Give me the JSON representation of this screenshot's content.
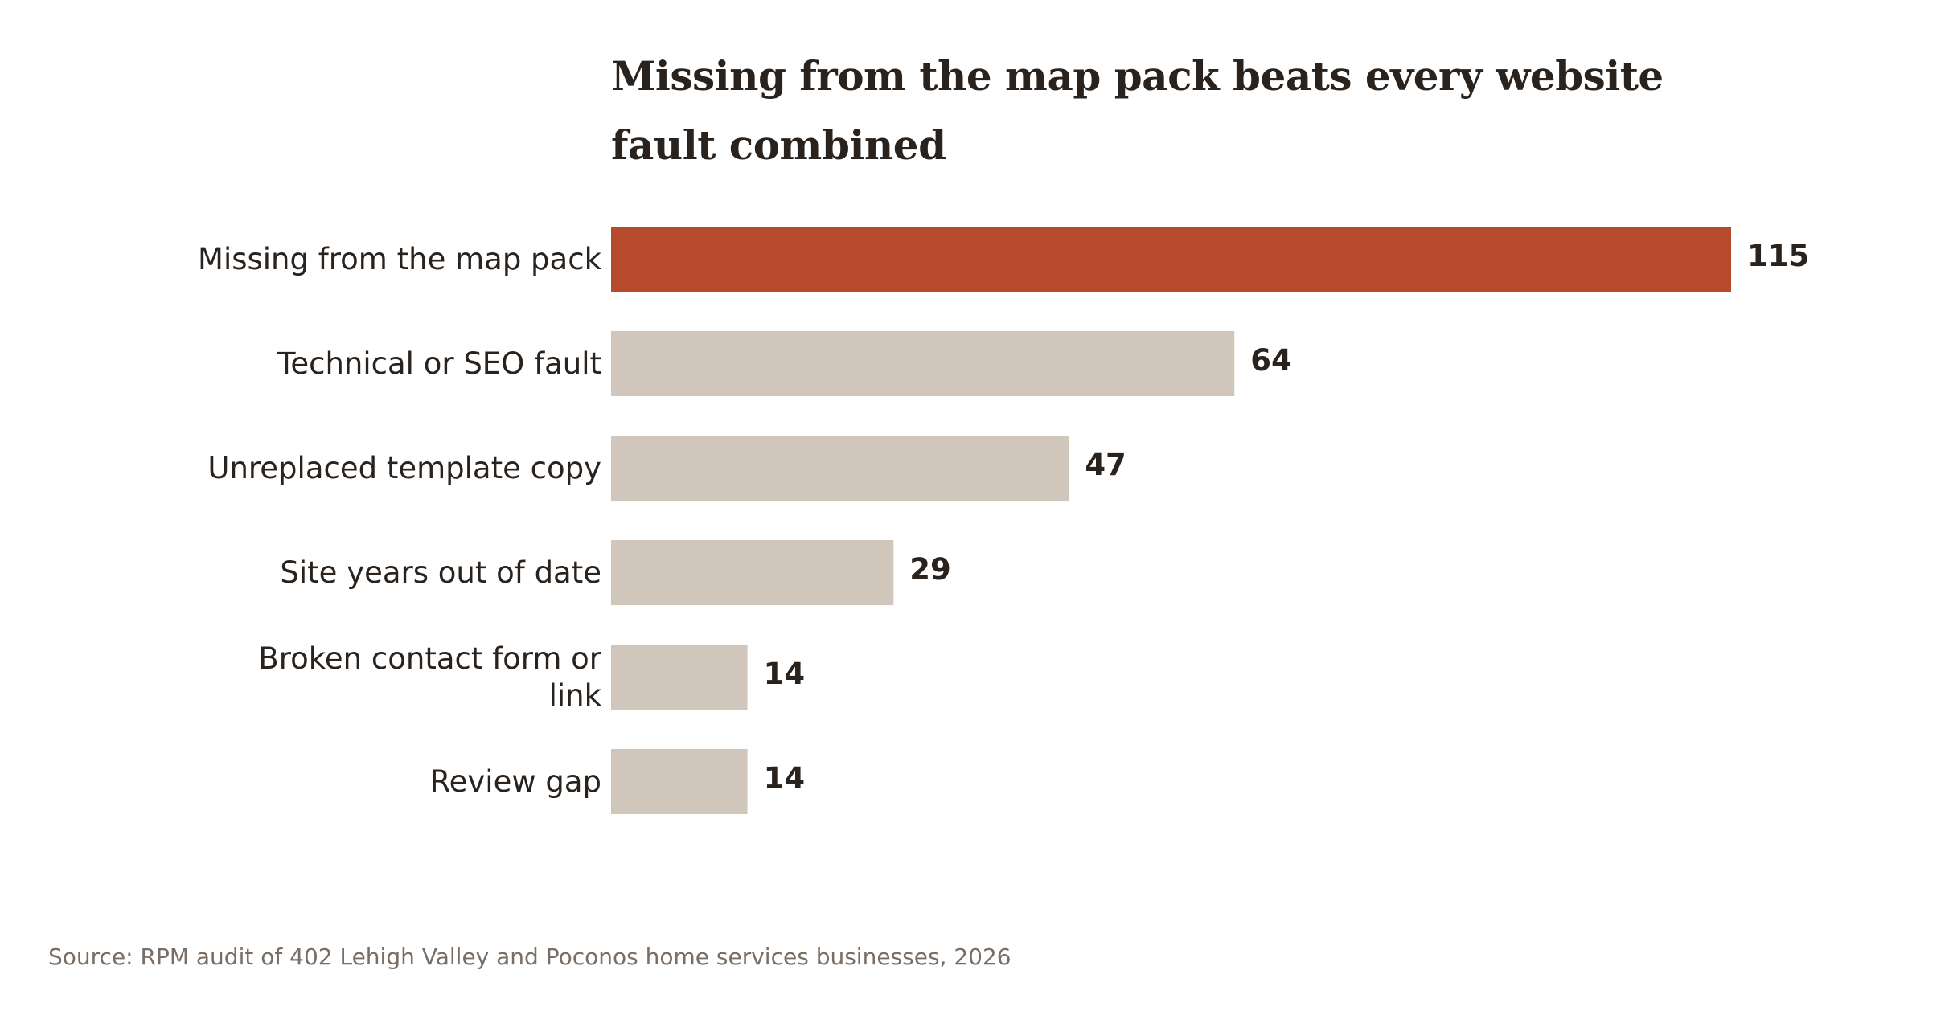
{
  "chart_data": {
    "type": "bar",
    "orientation": "horizontal",
    "title": "Missing from the map pack beats every website fault combined",
    "categories": [
      "Missing from the map pack",
      "Technical or SEO fault",
      "Unreplaced template copy",
      "Site years out of date",
      "Broken contact form or link",
      "Review gap"
    ],
    "category_lines": [
      [
        "Missing from the map pack"
      ],
      [
        "Technical or SEO fault"
      ],
      [
        "Unreplaced template copy"
      ],
      [
        "Site years out of date"
      ],
      [
        "Broken contact form or",
        "link"
      ],
      [
        "Review gap"
      ]
    ],
    "values": [
      115,
      64,
      47,
      29,
      14,
      14
    ],
    "highlight_index": 0,
    "xlim": [
      0,
      115
    ],
    "grid": false,
    "legend": "none",
    "xlabel": "",
    "ylabel": "",
    "source": "Source: RPM audit of 402 Lehigh Valley and Poconos home services businesses, 2026"
  },
  "colors": {
    "highlight_bar": "#b7492c",
    "default_bar": "#d0c6bb",
    "text": "#2a231d",
    "source_text": "#7a6e64"
  }
}
